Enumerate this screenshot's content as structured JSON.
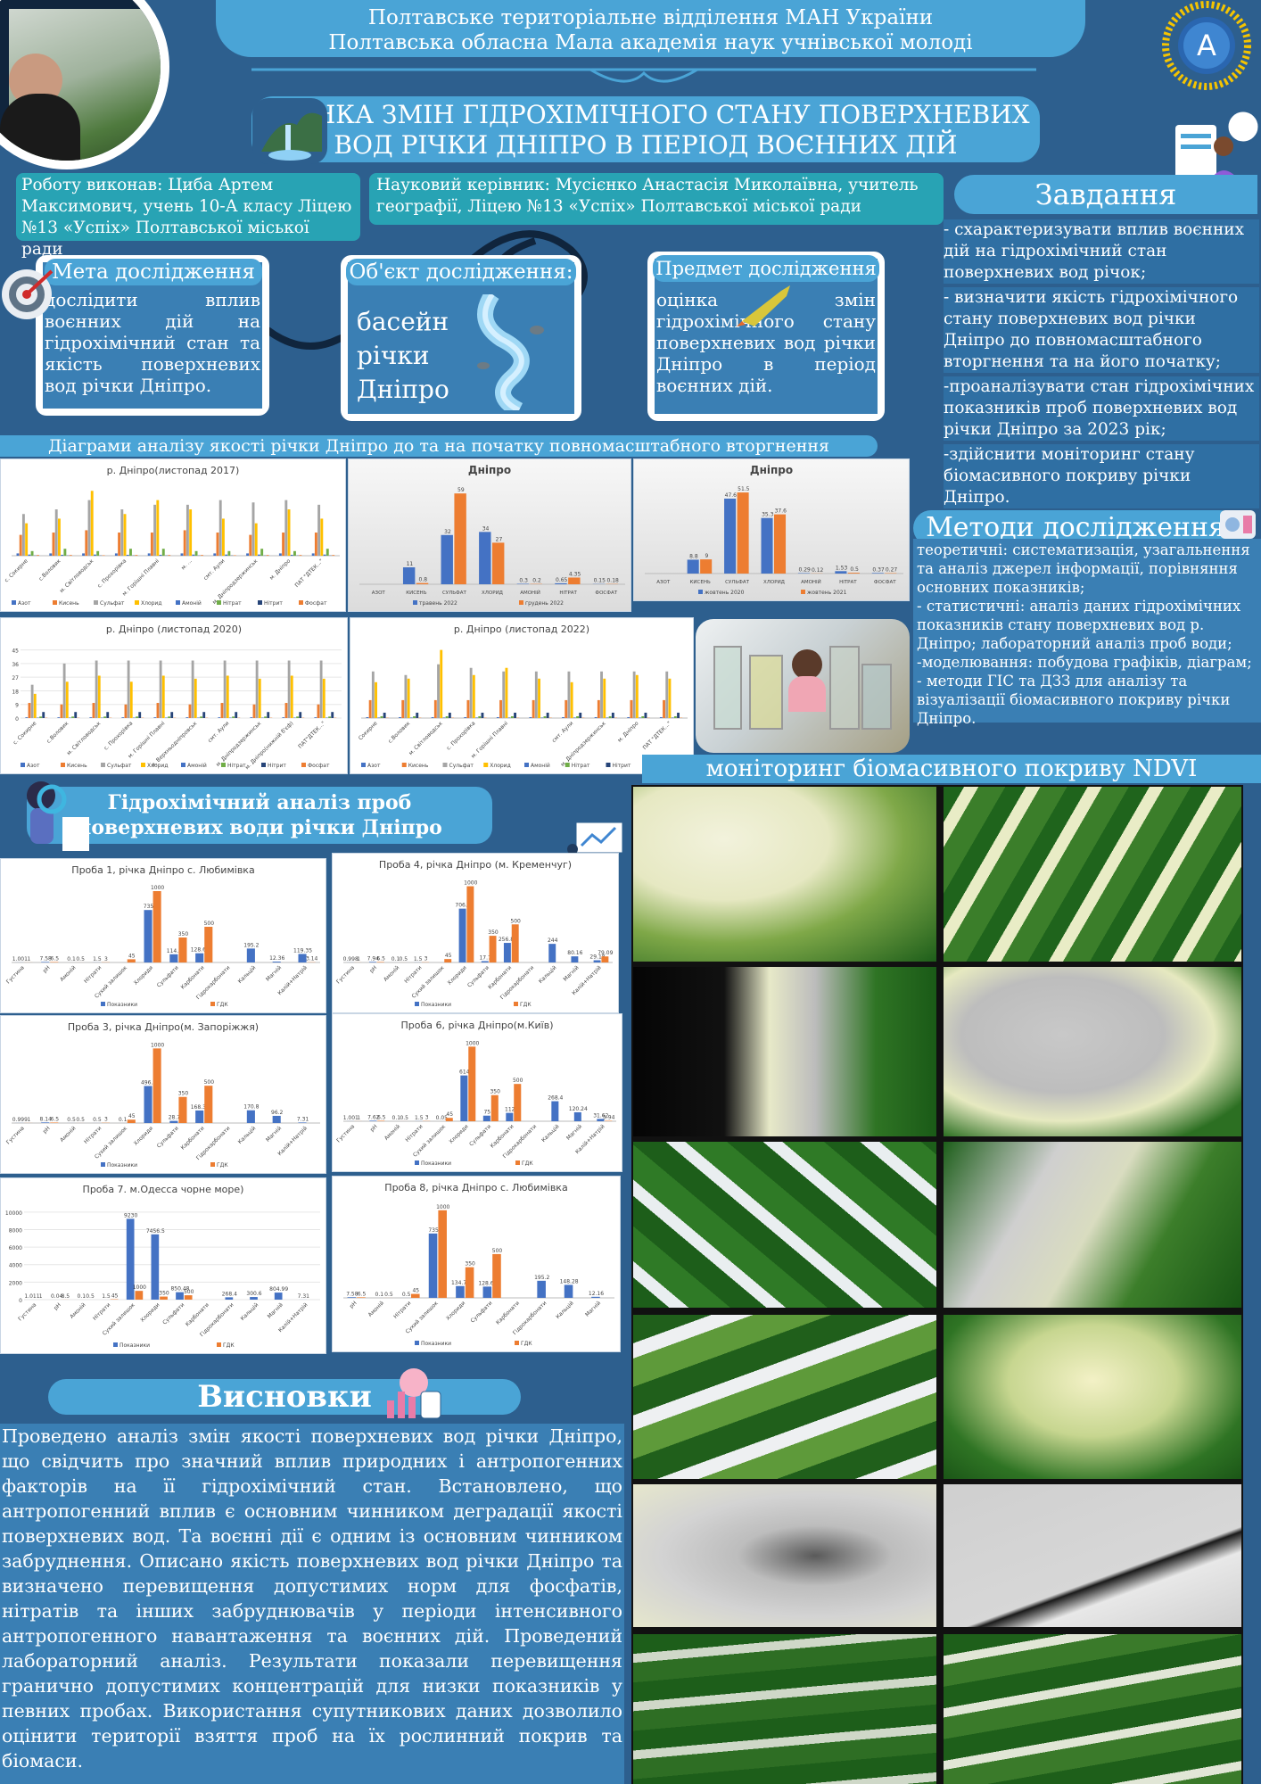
{
  "header": {
    "line1": "Полтавське територіальне відділення МАН України",
    "line2": "Полтавська обласна Мала академія наук учнівської молоді",
    "title1": "ОЦІНКА ЗМІН ГІДРОХІМІЧНОГО СТАНУ ПОВЕРХНЕВИХ",
    "title2": "ВОД РІЧКИ ДНІПРО В ПЕРІОД ВОЄННИХ ДІЙ"
  },
  "authors": {
    "author": "Роботу виконав: Циба Артем Максимович, учень 10-А класу Ліцею №13 «Успіх» Полтавської міської ради",
    "supervisor": "Науковий керівник: Мусієнко Анастасія Миколаївна, учитель географії, Ліцею №13 «Успіх» Полтавської міської ради"
  },
  "goal": {
    "title": "Мета дослідження",
    "text": "дослідити вплив воєнних дій на гідрохімічний стан та якість поверхневих вод річки Дніпро."
  },
  "object": {
    "title": "Об'єкт дослідження:",
    "text": "басейн річки Дніпро"
  },
  "subject": {
    "title": "Предмет дослідження",
    "text": "оцінка змін гідрохімічного стану поверхневих вод річки Дніпро в період воєнних дій."
  },
  "tasks": {
    "title": "Завдання",
    "items": [
      "- схарактеризувати вплив воєнних дій на гідрохімічний стан поверхневих вод річок;",
      "- визначити якість гідрохімічного стану поверхневих вод річки Дніпро до повномасштабного вторгнення та на його початку;",
      "-проаналізувати стан гідрохімічних показників проб поверхневих вод річки Дніпро за 2023 рік;",
      "-здійснити моніторинг стану біомасивного покриву річки Дніпро."
    ]
  },
  "methods": {
    "title": "Методи дослідження",
    "items": [
      "теоретичні: систематизація, узагальнення та аналіз джерел інформації, порівняння основних показників;",
      "- статистичні: аналіз даних гідрохімічних показників стану поверхневих вод р. Дніпро; лабораторний аналіз проб води;",
      "-моделювання: побудова графіків, діаграм;",
      "- методи ГІС та ДЗЗ для аналізу та візуалізації біомасивного покриву річки Дніпро."
    ]
  },
  "diagrams_title": "Діаграми аналізу якості річки Дніпро до та на початку повномасштабного вторгнення",
  "hydro_title1": "Гідрохімічний аналіз проб",
  "hydro_title2": "поверхневих води річки Дніпро",
  "ndvi_title": "моніторинг біомасивного покриву NDVI",
  "conclusions": {
    "title": "Висновки",
    "text": "Проведено аналіз змін якості поверхневих вод річки Дніпро, що свідчить про значний вплив природних і антропогенних факторів на її гідрохімічний стан. Встановлено, що антропогенний вплив є основним чинником деградації якості поверхневих вод. Та воєнні дії є одним із основним чинником забруднення. Описано якість поверхневих вод річки Дніпро та визначено перевищення допустимих норм для фосфатів, нітратів та інших забруднювачів у періоди інтенсивного антропогенного навантаження та воєнних дій. Проведений лабораторний аналіз. Результати показали перевищення гранично допустимих концентрацій для низки показників у певних пробах. Використання супутникових даних дозволило оцінити  території взяття проб на їх рослинний покрив та біомаси."
  },
  "colors": {
    "bg": "#2d5f8e",
    "pill": "#4aa4d6",
    "box": "#3a7fb4",
    "blue": "#4472c4",
    "orange": "#ed7d31",
    "gray": "#a5a5a5",
    "yellow": "#ffc000",
    "navy": "#264478",
    "green": "#70ad47"
  },
  "chart_data": [
    {
      "type": "bar",
      "title": "р. Дніпро(листопад 2017)",
      "categories": [
        "с. Сокирне",
        "с.Воловик",
        "м. Світловодськ",
        "с. Прохорівка",
        "м. Горішні Плавні",
        "м. ...",
        "смт. Аули",
        "м. Дніпродзержинськ",
        "м. Дніпро",
        "ПАТ \"ДТЕК...\""
      ],
      "series": [
        {
          "name": "Азот",
          "values": [
            1,
            1,
            1,
            1,
            1,
            1,
            1,
            1,
            1,
            1
          ]
        },
        {
          "name": "Кисень",
          "values": [
            9,
            10,
            11,
            10,
            10,
            11,
            10,
            9,
            10,
            10
          ]
        },
        {
          "name": "Сульфат",
          "values": [
            18,
            20,
            24,
            20,
            22,
            22,
            24,
            23,
            24,
            22
          ]
        },
        {
          "name": "Хлорид",
          "values": [
            14,
            16,
            28,
            18,
            24,
            20,
            16,
            14,
            20,
            16
          ]
        },
        {
          "name": "Амоній",
          "values": [
            0.5,
            0.4,
            0.5,
            0.4,
            0.4,
            0.5,
            0.5,
            0.5,
            0.4,
            0.5
          ]
        },
        {
          "name": "Нітрат",
          "values": [
            2,
            3,
            2,
            3,
            3,
            2,
            2,
            3,
            2,
            3
          ]
        },
        {
          "name": "Нітрит",
          "values": [
            0.1,
            0.1,
            0.1,
            0.1,
            0.1,
            0.1,
            0.1,
            0.1,
            0.1,
            0.1
          ]
        },
        {
          "name": "Фосфат",
          "values": [
            0.3,
            0.3,
            0.2,
            0.3,
            0.3,
            0.3,
            0.2,
            0.3,
            0.3,
            0.3
          ]
        }
      ]
    },
    {
      "type": "bar",
      "title": "Дніпро",
      "categories": [
        "АЗОТ",
        "КИСЕНЬ",
        "СУЛЬФАТ",
        "ХЛОРИД",
        "АМОНІЙ",
        "НІТРАТ",
        "ФОСФАТ"
      ],
      "series": [
        {
          "name": "травень 2022",
          "values": [
            0,
            11,
            32,
            34,
            0.3,
            0.65,
            0.15
          ]
        },
        {
          "name": "грудень 2022",
          "values": [
            0,
            0.8,
            59,
            27,
            0.2,
            4.35,
            0.18
          ]
        }
      ]
    },
    {
      "type": "bar",
      "title": "Дніпро",
      "categories": [
        "АЗОТ",
        "КИСЕНЬ",
        "СУЛЬФАТ",
        "ХЛОРИД",
        "АМОНІЙ",
        "НІТРАТ",
        "ФОСФАТ"
      ],
      "series": [
        {
          "name": "жовтень 2020",
          "values": [
            0,
            8.8,
            47.6,
            35.3,
            0.29,
            1.53,
            0.37
          ]
        },
        {
          "name": "жовтень 2021",
          "values": [
            0,
            9,
            51.5,
            37.6,
            0.12,
            0.5,
            0.27
          ]
        }
      ]
    },
    {
      "type": "bar",
      "title": "р. Дніпро (листопад 2020)",
      "ylim": [
        0,
        45
      ],
      "categories": [
        "с. Сокирне",
        "с.Воловик",
        "м. Світловодськ",
        "с. Прохорівка",
        "м. Горішні Плавні",
        "м. Верхньодніпровськ",
        "смт. Аули",
        "м. Дніпродзержинськ",
        "м. Дніпро(нижній б'єф)",
        "ПАТ\"ДТЕК...\""
      ],
      "series": [
        {
          "name": "Азот",
          "values": [
            0.5,
            0.5,
            0.5,
            0.5,
            0.5,
            0.5,
            0.5,
            0.5,
            0.5,
            0.5
          ]
        },
        {
          "name": "Кисень",
          "values": [
            10,
            9,
            10,
            9,
            10,
            9,
            10,
            9,
            10,
            9
          ]
        },
        {
          "name": "Сульфат",
          "values": [
            22,
            36,
            38,
            38,
            38,
            38,
            38,
            38,
            38,
            38
          ]
        },
        {
          "name": "Хлорид",
          "values": [
            16,
            24,
            28,
            24,
            28,
            26,
            28,
            26,
            28,
            26
          ]
        },
        {
          "name": "Амоній",
          "values": [
            0.3,
            0.3,
            0.3,
            0.3,
            0.3,
            0.3,
            0.3,
            0.3,
            0.3,
            0.3
          ]
        },
        {
          "name": "Нітрат",
          "values": [
            1,
            1,
            1,
            1,
            1,
            1,
            1,
            1,
            1,
            1
          ]
        },
        {
          "name": "Нітрит",
          "values": [
            4,
            4,
            4,
            4,
            4,
            4,
            4,
            4,
            4,
            4
          ]
        },
        {
          "name": "Фосфат",
          "values": [
            0.2,
            0.2,
            0.2,
            0.2,
            0.2,
            0.2,
            0.2,
            0.2,
            0.2,
            0.2
          ]
        }
      ]
    },
    {
      "type": "bar",
      "title": "р. Дніпро (листопад 2022)",
      "categories": [
        "Сокирне",
        "с.Воловик",
        "м. Світловодськ",
        "с. Прохорівка",
        "м. Горішні Плавні",
        "",
        "смт. Аули",
        "м. Дніпродзержинськ",
        "м. Дніпро",
        "ПАТ \"ДТЕК...\""
      ],
      "series": [
        {
          "name": "Азот",
          "values": [
            0.5,
            0.5,
            0.5,
            0.5,
            0.5,
            0.5,
            0.5,
            0.5,
            0.5,
            0.5
          ]
        },
        {
          "name": "Кисень",
          "values": [
            10,
            10,
            10,
            10,
            10,
            10,
            10,
            10,
            10,
            10
          ]
        },
        {
          "name": "Сульфат",
          "values": [
            26,
            24,
            30,
            28,
            26,
            26,
            26,
            26,
            26,
            26
          ]
        },
        {
          "name": "Хлорид",
          "values": [
            20,
            22,
            38,
            24,
            28,
            22,
            20,
            22,
            24,
            22
          ]
        },
        {
          "name": "Амоній",
          "values": [
            0.3,
            0.3,
            0.3,
            0.3,
            0.3,
            0.3,
            0.3,
            0.3,
            0.3,
            0.3
          ]
        },
        {
          "name": "Нітрат",
          "values": [
            1,
            1,
            1,
            1,
            1,
            1,
            1,
            1,
            1,
            1
          ]
        },
        {
          "name": "Нітрит",
          "values": [
            3,
            3,
            3,
            3,
            3,
            3,
            3,
            3,
            3,
            3
          ]
        },
        {
          "name": "Фосфат",
          "values": [
            0.2,
            0.2,
            0.2,
            0.2,
            0.2,
            0.2,
            0.2,
            0.2,
            0.2,
            0.2
          ]
        }
      ]
    },
    {
      "type": "bar",
      "title": "Проба 1, річка Дніпро с. Любимівка",
      "categories": [
        "Густина",
        "pH",
        "Амоній",
        "Нітрати",
        "Сухий залишок",
        "Хлориди",
        "Сульфати",
        "Карбонати",
        "Гідрокарбонати",
        "Кальцій",
        "Магній",
        "Калій+Натрій"
      ],
      "series": [
        {
          "name": "Показники",
          "values": [
            1.001,
            7.58,
            0.1,
            1.5,
            0,
            735,
            114.7,
            128.68,
            0,
            195.2,
            12.36,
            119.35
          ]
        },
        {
          "name": "ГДК",
          "values": [
            1,
            6.5,
            0.5,
            3,
            45,
            1000,
            350,
            500,
            0,
            0,
            0,
            3.14
          ]
        }
      ]
    },
    {
      "type": "bar",
      "title": "Проба 4, річка Дніпро (м. Кременчуг)",
      "categories": [
        "Густина",
        "pH",
        "Амоній",
        "Нітрати",
        "Сухий залишок",
        "Хлориди",
        "Сульфати",
        "Карбонати",
        "Гідрокарбонати",
        "Кальцій",
        "Магній",
        "Калій+Натрій"
      ],
      "series": [
        {
          "name": "Показники",
          "values": [
            0.998,
            7.94,
            0.1,
            1.5,
            0,
            706.5,
            17.7,
            256.81,
            0,
            244,
            80.16,
            29.18
          ]
        },
        {
          "name": "ГДК",
          "values": [
            1,
            6.5,
            0.5,
            3,
            45,
            1000,
            350,
            500,
            0,
            0,
            0,
            79.09
          ]
        }
      ]
    },
    {
      "type": "bar",
      "title": "Проба 3, річка Дніпро(м. Запоріжжя)",
      "categories": [
        "Густина",
        "pH",
        "Амоній",
        "Нітрати",
        "Сухий залишок",
        "Хлориди",
        "Сульфати",
        "Карбонати",
        "Гідрокарбонати",
        "Кальцій",
        "Магній",
        "Калій+Натрій"
      ],
      "series": [
        {
          "name": "Показники",
          "values": [
            0.999,
            8.14,
            0.5,
            0.5,
            0.1,
            496.5,
            28.7,
            168.33,
            0,
            170.8,
            96.2,
            7.31
          ]
        },
        {
          "name": "ГДК",
          "values": [
            1,
            6.5,
            0.5,
            3,
            45,
            1000,
            350,
            500,
            0,
            0,
            0,
            0
          ]
        }
      ]
    },
    {
      "type": "bar",
      "title": "Проба 6, річка Дніпро(м.Київ)",
      "categories": [
        "Густина",
        "pH",
        "Амоній",
        "Нітрати",
        "Сухий залишок",
        "Хлориди",
        "Сульфати",
        "Карбонати",
        "Гідрокарбонати",
        "Кальцій",
        "Магній",
        "Калій+Натрій"
      ],
      "series": [
        {
          "name": "Показники",
          "values": [
            1.001,
            7.62,
            0.1,
            1.5,
            0.05,
            614,
            75,
            112,
            0,
            268.4,
            120.24,
            31.62
          ]
        },
        {
          "name": "ГДК",
          "values": [
            1,
            6.5,
            0.5,
            3,
            45,
            1000,
            350,
            500,
            0,
            0,
            0,
            5.94
          ]
        }
      ]
    },
    {
      "type": "bar",
      "title": "Проба 7. м.Одесса чорне море)",
      "ylim": [
        0,
        10000
      ],
      "categories": [
        "Густина",
        "pH",
        "Амоній",
        "Нітрати",
        "Сухий залишок",
        "Хлориди",
        "Сульфати",
        "Карбонати",
        "Гідрокарбонати",
        "Кальцій",
        "Магній",
        "Калій+Натрій"
      ],
      "series": [
        {
          "name": "Показники",
          "values": [
            1.011,
            0.04,
            0.1,
            1.5,
            9230,
            7456.5,
            850.48,
            0,
            268.4,
            300.6,
            804.99,
            7.31
          ]
        },
        {
          "name": "ГДК",
          "values": [
            1,
            8.5,
            0.5,
            45,
            1000,
            350,
            500,
            0,
            0,
            0,
            0,
            0
          ]
        }
      ]
    },
    {
      "type": "bar",
      "title": "Проба 8, річка Дніпро с. Любимівка",
      "categories": [
        "pH",
        "Амоній",
        "Нітрати",
        "Сухий залишок",
        "Хлориди",
        "Сульфати",
        "Карбонати",
        "Гідрокарбонати",
        "Кальцій",
        "Магній"
      ],
      "series": [
        {
          "name": "Показники",
          "values": [
            7.58,
            0.1,
            0.5,
            735,
            134.72,
            128.68,
            0,
            195.2,
            148.28,
            12.16
          ]
        },
        {
          "name": "ГДК",
          "values": [
            6.5,
            0.5,
            45,
            1000,
            350,
            500,
            0,
            0,
            0,
            0
          ]
        }
      ]
    }
  ]
}
